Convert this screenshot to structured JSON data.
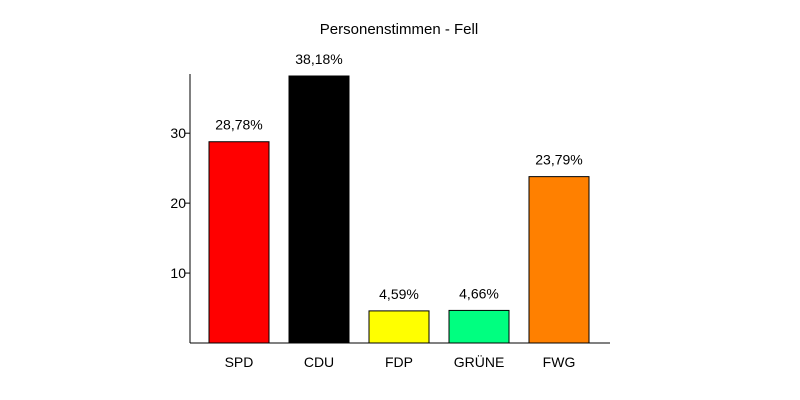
{
  "chart_data": {
    "type": "bar",
    "title": "Personenstimmen - Fell",
    "categories": [
      "SPD",
      "CDU",
      "FDP",
      "GRÜNE",
      "FWG"
    ],
    "values": [
      28.78,
      38.18,
      4.59,
      4.66,
      23.79
    ],
    "data_labels": [
      "28,78%",
      "38,18%",
      "4,59%",
      "4,66%",
      "23,79%"
    ],
    "colors": [
      "#ff0000",
      "#000000",
      "#ffff00",
      "#00ff80",
      "#ff8000"
    ],
    "yticks": [
      10,
      20,
      30
    ],
    "ylim": [
      0,
      38.18
    ],
    "grid": false,
    "legend": "none"
  }
}
